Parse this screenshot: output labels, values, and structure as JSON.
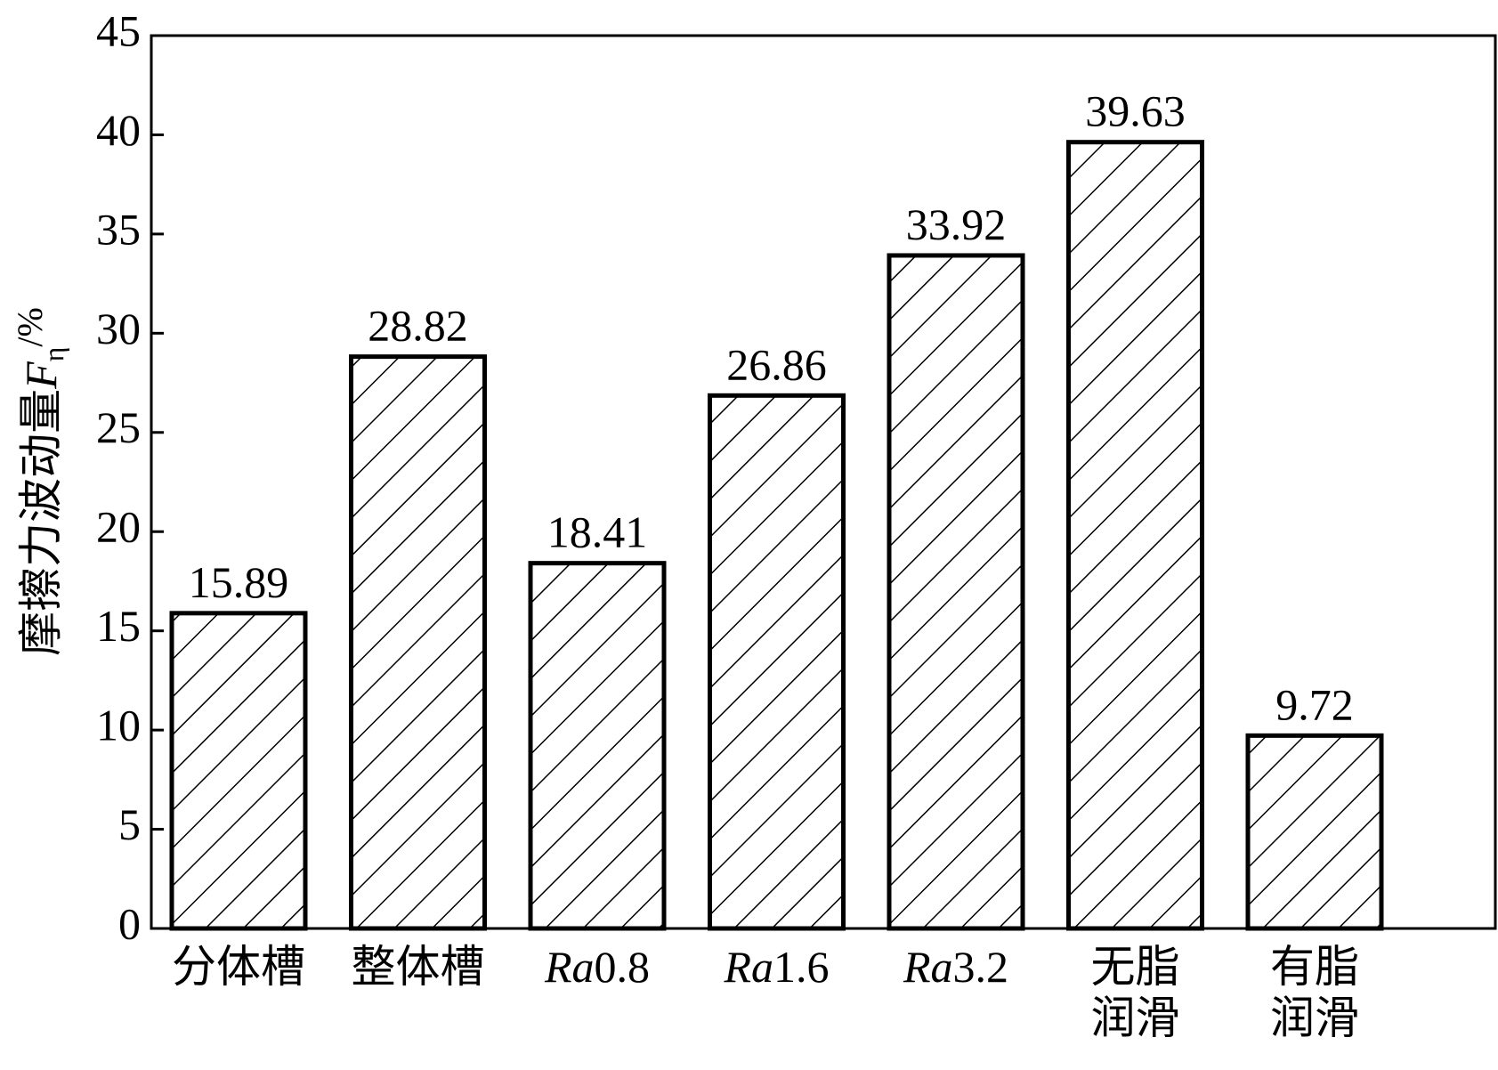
{
  "chart_data": {
    "type": "bar",
    "y_label": "摩擦力波动量Fη/%",
    "categories": [
      "分体槽",
      "整体槽",
      "Ra0.8",
      "Ra1.6",
      "Ra3.2",
      "无脂\n润滑",
      "有脂\n润滑"
    ],
    "values": [
      15.89,
      28.82,
      18.41,
      26.86,
      33.92,
      39.63,
      9.72
    ],
    "color": "#000000",
    "ylim": [
      0,
      45
    ],
    "yticks": [
      0,
      5,
      10,
      15,
      20,
      25,
      30,
      35,
      40,
      45
    ],
    "grid": false
  }
}
